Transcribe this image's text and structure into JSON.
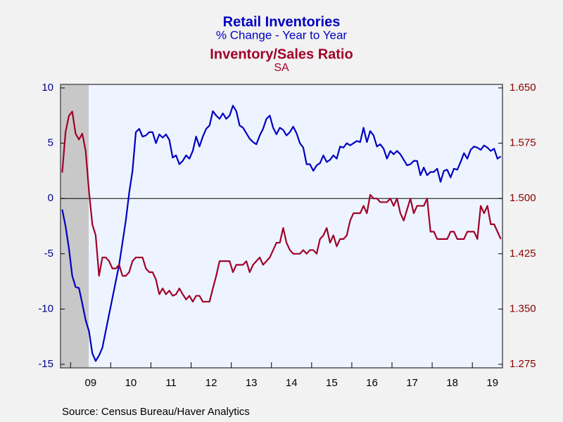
{
  "chart_data": {
    "type": "line",
    "series": [
      {
        "name": "Retail Inventories",
        "subtitle": "% Change - Year to Year",
        "color": "#0000c0",
        "axis": "y",
        "values": [
          -1,
          -2.5,
          -4.5,
          -7,
          -8,
          -8.1,
          -9.5,
          -11,
          -12,
          -14,
          -14.7,
          -14.2,
          -13.5,
          -12,
          -10.5,
          -9,
          -7.5,
          -6,
          -4,
          -2,
          0.5,
          2.5,
          6,
          6.3,
          5.6,
          5.7,
          6,
          6,
          5,
          5.8,
          5.5,
          5.8,
          5.3,
          3.7,
          3.9,
          3.1,
          3.4,
          3.9,
          3.6,
          4.3,
          5.6,
          4.7,
          5.6,
          6.3,
          6.6,
          7.9,
          7.5,
          7.2,
          7.7,
          7.2,
          7.5,
          8.4,
          7.9,
          6.6,
          6.4,
          5.9,
          5.4,
          5.1,
          4.9,
          5.7,
          6.3,
          7.2,
          7.5,
          6.4,
          5.8,
          6.4,
          6.2,
          5.7,
          6.0,
          6.5,
          5.9,
          5.0,
          4.6,
          3.1,
          3.1,
          2.5,
          3.0,
          3.2,
          3.9,
          3.3,
          3.5,
          3.9,
          3.6,
          4.7,
          4.6,
          5.0,
          4.8,
          5.0,
          5.2,
          5.1,
          6.4,
          5.1,
          6.1,
          5.7,
          4.7,
          4.9,
          4.5,
          3.6,
          4.3,
          4.0,
          4.3,
          4.0,
          3.5,
          3.0,
          3.1,
          3.4,
          3.4,
          2.1,
          2.8,
          2.1,
          2.4,
          2.4,
          2.7,
          1.5,
          2.5,
          2.6,
          1.9,
          2.7,
          2.6,
          3.3,
          4.1,
          3.6,
          4.4,
          4.7,
          4.6,
          4.4,
          4.8,
          4.6,
          4.3,
          4.5,
          3.6,
          3.8
        ]
      },
      {
        "name": "Inventory/Sales Ratio",
        "subtitle": "SA",
        "color": "#a0002a",
        "axis": "y2",
        "values": [
          1.535,
          1.59,
          1.612,
          1.618,
          1.588,
          1.58,
          1.588,
          1.565,
          1.51,
          1.465,
          1.45,
          1.395,
          1.42,
          1.42,
          1.415,
          1.405,
          1.405,
          1.41,
          1.395,
          1.395,
          1.4,
          1.415,
          1.42,
          1.42,
          1.42,
          1.405,
          1.4,
          1.4,
          1.39,
          1.37,
          1.378,
          1.37,
          1.375,
          1.368,
          1.37,
          1.378,
          1.37,
          1.363,
          1.368,
          1.36,
          1.368,
          1.368,
          1.36,
          1.36,
          1.36,
          1.378,
          1.395,
          1.415,
          1.415,
          1.415,
          1.415,
          1.4,
          1.41,
          1.41,
          1.41,
          1.415,
          1.4,
          1.41,
          1.415,
          1.42,
          1.41,
          1.415,
          1.42,
          1.43,
          1.44,
          1.44,
          1.46,
          1.44,
          1.43,
          1.425,
          1.425,
          1.425,
          1.43,
          1.425,
          1.43,
          1.43,
          1.425,
          1.445,
          1.45,
          1.46,
          1.44,
          1.45,
          1.435,
          1.445,
          1.445,
          1.45,
          1.47,
          1.48,
          1.48,
          1.48,
          1.49,
          1.48,
          1.505,
          1.5,
          1.5,
          1.495,
          1.495,
          1.495,
          1.5,
          1.49,
          1.5,
          1.48,
          1.47,
          1.485,
          1.5,
          1.48,
          1.49,
          1.49,
          1.49,
          1.5,
          1.455,
          1.455,
          1.445,
          1.445,
          1.445,
          1.445,
          1.455,
          1.455,
          1.445,
          1.445,
          1.445,
          1.455,
          1.455,
          1.455,
          1.445,
          1.49,
          1.48,
          1.49,
          1.465,
          1.465,
          1.455,
          1.445
        ]
      }
    ],
    "categories": [
      null,
      null,
      null,
      null,
      null,
      null,
      null,
      null,
      "09",
      null,
      null,
      null,
      null,
      null,
      null,
      null,
      null,
      null,
      null,
      null,
      "10",
      null,
      null,
      null,
      null,
      null,
      null,
      null,
      null,
      null,
      null,
      null,
      "11",
      null,
      null,
      null,
      null,
      null,
      null,
      null,
      null,
      null,
      null,
      null,
      "12",
      null,
      null,
      null,
      null,
      null,
      null,
      null,
      null,
      null,
      null,
      null,
      "13",
      null,
      null,
      null,
      null,
      null,
      null,
      null,
      null,
      null,
      null,
      null,
      "14",
      null,
      null,
      null,
      null,
      null,
      null,
      null,
      null,
      null,
      null,
      null,
      "15",
      null,
      null,
      null,
      null,
      null,
      null,
      null,
      null,
      null,
      null,
      null,
      "16",
      null,
      null,
      null,
      null,
      null,
      null,
      null,
      null,
      null,
      null,
      null,
      "17",
      null,
      null,
      null,
      null,
      null,
      null,
      null,
      null,
      null,
      null,
      null,
      "18",
      null,
      null,
      null,
      null,
      null,
      null,
      null,
      null,
      null,
      null,
      null,
      "19",
      null,
      null,
      null
    ],
    "ylim": [
      -15,
      10
    ],
    "yticks": [
      -15,
      -10,
      -5,
      0,
      5,
      10
    ],
    "y2lim": [
      1.275,
      1.65
    ],
    "y2ticks": [
      {
        "value": 1.275,
        "label": "1.275"
      },
      {
        "value": 1.35,
        "label": "1.350"
      },
      {
        "value": 1.425,
        "label": "1.425"
      },
      {
        "value": 1.5,
        "label": "1.500"
      },
      {
        "value": 1.575,
        "label": "1.575"
      },
      {
        "value": 1.65,
        "label": "1.650"
      }
    ],
    "source": "Source:  Census Bureau/Haver Analytics"
  }
}
